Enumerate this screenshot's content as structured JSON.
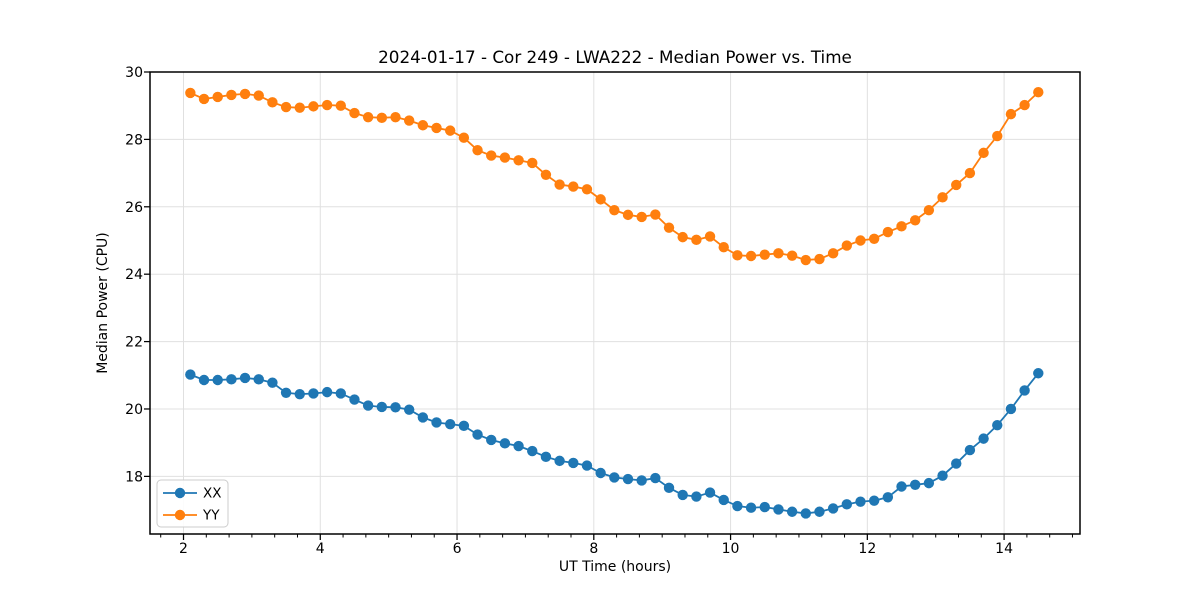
{
  "chart_data": {
    "type": "line",
    "title": "2024-01-17 - Cor 249 - LWA222 - Median Power vs. Time",
    "xlabel": "UT Time (hours)",
    "ylabel": "Median Power (CPU)",
    "xlim": [
      1.51,
      15.11
    ],
    "ylim": [
      16.29,
      30.0
    ],
    "xticks": [
      2,
      4,
      6,
      8,
      10,
      12,
      14
    ],
    "yticks": [
      18,
      20,
      22,
      24,
      26,
      28,
      30
    ],
    "x_minor_tick_step": 0.3333,
    "grid": true,
    "grid_color": "#e0e0e0",
    "legend_position": "lower-left",
    "marker": "circle",
    "x": [
      2.1,
      2.3,
      2.5,
      2.7,
      2.9,
      3.1,
      3.3,
      3.5,
      3.7,
      3.9,
      4.1,
      4.3,
      4.5,
      4.7,
      4.9,
      5.1,
      5.3,
      5.5,
      5.7,
      5.9,
      6.1,
      6.3,
      6.5,
      6.7,
      6.9,
      7.1,
      7.3,
      7.5,
      7.7,
      7.9,
      8.1,
      8.3,
      8.5,
      8.7,
      8.9,
      9.1,
      9.3,
      9.5,
      9.7,
      9.9,
      10.1,
      10.3,
      10.5,
      10.7,
      10.9,
      11.1,
      11.3,
      11.5,
      11.7,
      11.9,
      12.1,
      12.3,
      12.5,
      12.7,
      12.9,
      13.1,
      13.3,
      13.5,
      13.7,
      13.9,
      14.1,
      14.3,
      14.5
    ],
    "series": [
      {
        "name": "XX",
        "color": "#1f77b4",
        "values": [
          21.02,
          20.86,
          20.86,
          20.88,
          20.92,
          20.88,
          20.78,
          20.48,
          20.44,
          20.46,
          20.5,
          20.46,
          20.28,
          20.1,
          20.06,
          20.05,
          19.98,
          19.75,
          19.6,
          19.55,
          19.5,
          19.24,
          19.08,
          18.98,
          18.9,
          18.75,
          18.58,
          18.46,
          18.4,
          18.32,
          18.1,
          17.97,
          17.92,
          17.88,
          17.95,
          17.66,
          17.45,
          17.4,
          17.52,
          17.3,
          17.12,
          17.07,
          17.09,
          17.02,
          16.95,
          16.9,
          16.95,
          17.05,
          17.17,
          17.25,
          17.28,
          17.38,
          17.7,
          17.75,
          17.8,
          18.02,
          18.38,
          18.78,
          19.12,
          19.52,
          20.0,
          20.55,
          21.06
        ]
      },
      {
        "name": "YY",
        "color": "#ff7f0e",
        "values": [
          29.38,
          29.2,
          29.26,
          29.32,
          29.35,
          29.3,
          29.1,
          28.96,
          28.94,
          28.98,
          29.02,
          29.0,
          28.78,
          28.66,
          28.64,
          28.66,
          28.56,
          28.42,
          28.34,
          28.26,
          28.05,
          27.68,
          27.52,
          27.46,
          27.38,
          27.3,
          26.95,
          26.66,
          26.6,
          26.52,
          26.22,
          25.9,
          25.76,
          25.7,
          25.77,
          25.38,
          25.1,
          25.02,
          25.12,
          24.8,
          24.56,
          24.54,
          24.58,
          24.62,
          24.55,
          24.42,
          24.45,
          24.62,
          24.85,
          25.0,
          25.05,
          25.25,
          25.42,
          25.6,
          25.9,
          26.28,
          26.65,
          27.0,
          27.6,
          28.1,
          28.75,
          29.02,
          29.4
        ]
      }
    ]
  }
}
